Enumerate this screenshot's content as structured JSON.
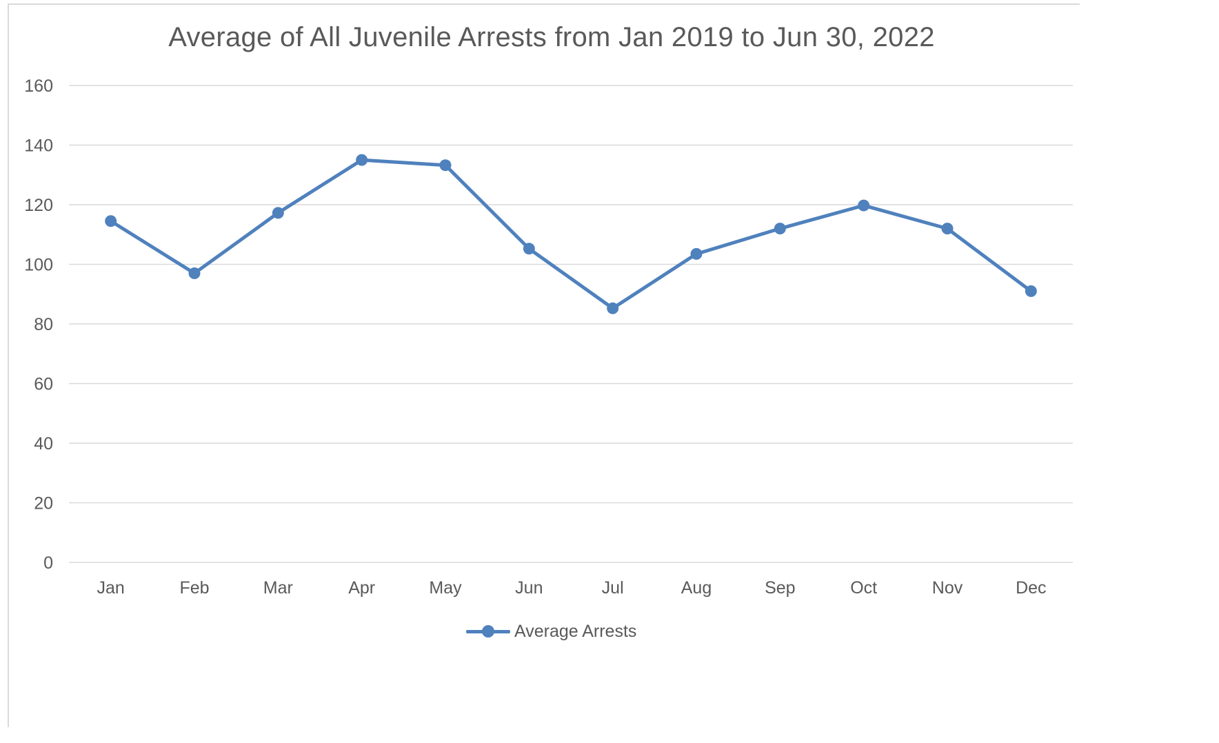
{
  "chart_data": {
    "type": "line",
    "title": "Average of All Juvenile Arrests from Jan 2019 to Jun 30, 2022",
    "xlabel": "",
    "ylabel": "",
    "categories": [
      "Jan",
      "Feb",
      "Mar",
      "Apr",
      "May",
      "Jun",
      "Jul",
      "Aug",
      "Sep",
      "Oct",
      "Nov",
      "Dec"
    ],
    "series": [
      {
        "name": "Average Arrests",
        "values": [
          114.5,
          97,
          117.25,
          135,
          133.25,
          105.25,
          85.25,
          103.5,
          112,
          119.75,
          112,
          91
        ],
        "color": "#4f81bd"
      }
    ],
    "ylim": [
      0,
      160
    ],
    "yticks": [
      0,
      20,
      40,
      60,
      80,
      100,
      120,
      140,
      160
    ],
    "grid": true,
    "legend": "bottom",
    "colors": {
      "gridline": "#d9d9d9",
      "text": "#595959",
      "series": "#4f81bd"
    }
  }
}
